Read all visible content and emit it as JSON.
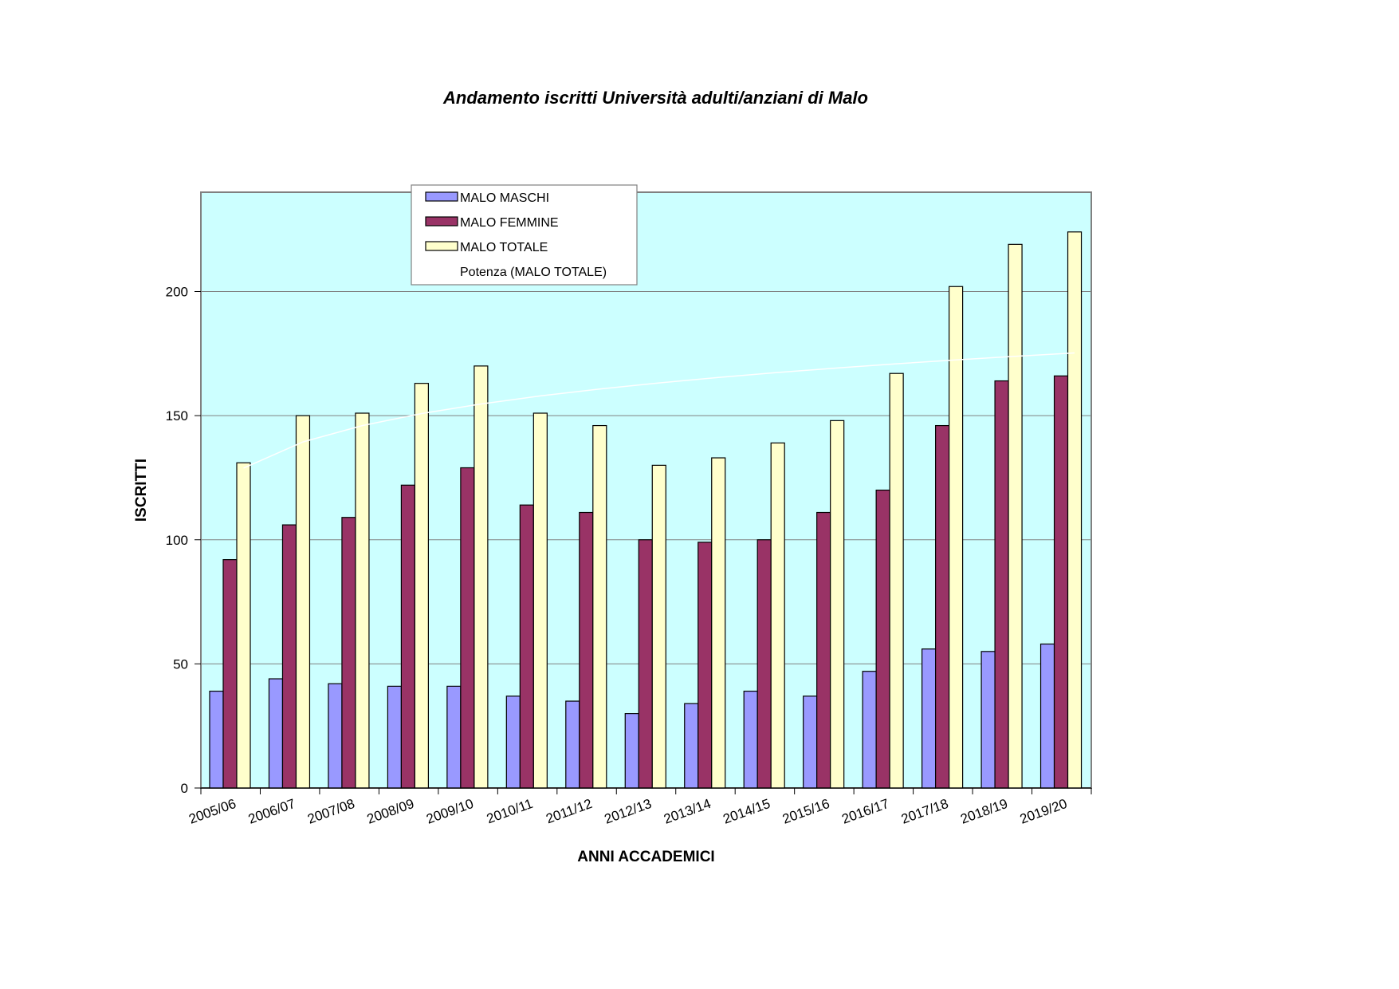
{
  "chart_data": {
    "type": "bar",
    "title": "Andamento iscritti Università adulti/anziani di Malo",
    "xlabel": "ANNI ACCADEMICI",
    "ylabel": "ISCRITTI",
    "ylim": [
      0,
      240
    ],
    "yticks": [
      0,
      50,
      100,
      150,
      200
    ],
    "grid": true,
    "legend_position": "top-left",
    "plot_background": "#CCFFFF",
    "categories": [
      "2005/06",
      "2006/07",
      "2007/08",
      "2008/09",
      "2009/10",
      "2010/11",
      "2011/12",
      "2012/13",
      "2013/14",
      "2014/15",
      "2015/16",
      "2016/17",
      "2017/18",
      "2018/19",
      "2019/20"
    ],
    "series": [
      {
        "name": "MALO MASCHI",
        "color": "#9999FF",
        "values": [
          39,
          44,
          42,
          41,
          41,
          37,
          35,
          30,
          34,
          39,
          37,
          47,
          56,
          55,
          58
        ]
      },
      {
        "name": "MALO FEMMINE",
        "color": "#993366",
        "values": [
          92,
          106,
          109,
          122,
          129,
          114,
          111,
          100,
          99,
          100,
          111,
          120,
          146,
          164,
          166
        ]
      },
      {
        "name": "MALO TOTALE",
        "color": "#FFFFCC",
        "values": [
          131,
          150,
          151,
          163,
          170,
          151,
          146,
          130,
          133,
          139,
          148,
          167,
          202,
          219,
          224
        ]
      }
    ],
    "trendline": {
      "name": "Potenza (MALO TOTALE)",
      "type": "power",
      "color": "#FFFFFF"
    }
  }
}
